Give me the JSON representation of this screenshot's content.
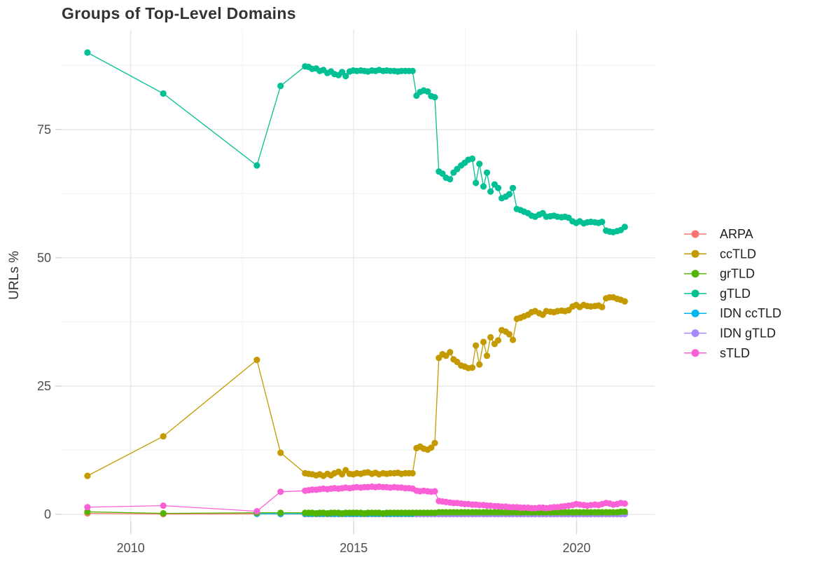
{
  "title": "Groups of Top-Level Domains",
  "axes": {
    "y_label": "URLs %",
    "y_ticks": [
      0,
      25,
      50,
      75
    ],
    "y_minor": [
      12.5,
      37.5,
      62.5,
      87.5
    ],
    "x_ticks": [
      2010,
      2015,
      2020
    ],
    "x_minor": [
      2012.5,
      2017.5
    ],
    "xlim": [
      2008.45,
      2021.75
    ],
    "ylim": [
      -1.5,
      94.5
    ]
  },
  "style_colors": {
    "grid_major": "#e6e6e6",
    "grid_minor": "#f2f2f2",
    "axis_tick": "#d9d9d9",
    "tick_text": "#4e4e4e",
    "title_text": "#333333"
  },
  "legend": {
    "position": "right",
    "items": [
      "ARPA",
      "ccTLD",
      "grTLD",
      "gTLD",
      "IDN ccTLD",
      "IDN gTLD",
      "sTLD"
    ]
  },
  "chart_data": {
    "type": "line",
    "title": "Groups of Top-Level Domains",
    "xlabel": "",
    "ylabel": "URLs %",
    "legend_position": "right",
    "grid": true,
    "marker": "point",
    "x": [
      2009.03,
      2010.73,
      2012.83,
      2013.36,
      2013.91,
      2013.99,
      2014.07,
      2014.16,
      2014.24,
      2014.32,
      2014.41,
      2014.49,
      2014.57,
      2014.66,
      2014.74,
      2014.82,
      2014.91,
      2014.99,
      2015.07,
      2015.16,
      2015.24,
      2015.32,
      2015.41,
      2015.49,
      2015.57,
      2015.66,
      2015.74,
      2015.82,
      2015.91,
      2015.99,
      2016.07,
      2016.16,
      2016.24,
      2016.32,
      2016.41,
      2016.49,
      2016.57,
      2016.66,
      2016.74,
      2016.82,
      2016.91,
      2016.99,
      2017.07,
      2017.16,
      2017.24,
      2017.32,
      2017.41,
      2017.49,
      2017.57,
      2017.66,
      2017.74,
      2017.82,
      2017.91,
      2017.99,
      2018.07,
      2018.16,
      2018.24,
      2018.32,
      2018.41,
      2018.49,
      2018.57,
      2018.66,
      2018.74,
      2018.82,
      2018.91,
      2018.99,
      2019.07,
      2019.16,
      2019.24,
      2019.32,
      2019.41,
      2019.49,
      2019.57,
      2019.66,
      2019.74,
      2019.82,
      2019.91,
      2019.99,
      2020.07,
      2020.16,
      2020.24,
      2020.32,
      2020.41,
      2020.49,
      2020.57,
      2020.66,
      2020.74,
      2020.82,
      2020.91,
      2020.99,
      2021.08
    ],
    "draw_order": [
      "ARPA",
      "IDN ccTLD",
      "IDN gTLD",
      "grTLD",
      "sTLD",
      "ccTLD",
      "gTLD"
    ],
    "series": [
      {
        "name": "ARPA",
        "color": "#F8766D",
        "values": [
          0.2,
          0.05,
          0.1,
          0.05,
          0.05,
          0.05,
          0.05,
          0.05,
          0.05,
          0.05,
          0.05,
          0.05,
          0.05,
          0.05,
          0.05,
          0.05,
          0.05,
          0.05,
          0.05,
          0.05,
          0.05,
          0.05,
          0.05,
          0.05,
          0.05,
          0.05,
          0.05,
          0.05,
          0.05,
          0.05,
          0.05,
          0.05,
          0.05,
          0.05,
          0.05,
          0.05,
          0.05,
          0.05,
          0.05,
          0.05,
          0.05,
          0.05,
          0.05,
          0.05,
          0.05,
          0.05,
          0.05,
          0.05,
          0.05,
          0.05,
          0.05,
          0.05,
          0.05,
          0.05,
          0.05,
          0.05,
          0.05,
          0.05,
          0.05,
          0.05,
          0.05,
          0.05,
          0.05,
          0.05,
          0.05,
          0.05,
          0.05,
          0.05,
          0.05,
          0.05,
          0.05,
          0.05,
          0.05,
          0.05,
          0.05,
          0.05,
          0.05,
          0.05,
          0.05,
          0.05,
          0.05,
          0.05,
          0.05,
          0.05,
          0.05,
          0.05,
          0.05,
          0.05,
          0.05,
          0.05,
          0.05
        ]
      },
      {
        "name": "ccTLD",
        "color": "#C49A00",
        "values": [
          7.5,
          15.2,
          30.1,
          12.0,
          8.0,
          7.9,
          7.8,
          7.6,
          7.8,
          7.5,
          7.9,
          7.6,
          8.0,
          8.3,
          7.8,
          8.6,
          7.9,
          7.8,
          8.0,
          7.9,
          8.1,
          8.2,
          7.9,
          8.1,
          7.8,
          8.0,
          7.9,
          8.0,
          8.0,
          8.1,
          7.9,
          8.0,
          8.0,
          8.0,
          12.9,
          13.2,
          12.8,
          12.6,
          13.0,
          13.9,
          30.5,
          31.2,
          30.9,
          31.6,
          30.2,
          29.7,
          29.0,
          28.8,
          28.5,
          28.6,
          32.9,
          29.2,
          33.6,
          30.9,
          34.5,
          33.2,
          33.9,
          35.9,
          35.6,
          35.1,
          34.0,
          38.1,
          38.3,
          38.6,
          38.9,
          39.4,
          39.6,
          39.2,
          38.9,
          39.6,
          39.5,
          39.4,
          39.6,
          39.7,
          39.6,
          39.8,
          40.5,
          40.8,
          40.4,
          40.8,
          40.6,
          40.5,
          40.6,
          40.7,
          40.4,
          42.1,
          42.3,
          42.3,
          42.0,
          41.8,
          41.5
        ]
      },
      {
        "name": "grTLD",
        "color": "#53B400",
        "values": [
          0.5,
          0.2,
          0.3,
          0.3,
          0.3,
          0.3,
          0.3,
          0.2,
          0.3,
          0.3,
          0.2,
          0.3,
          0.3,
          0.3,
          0.2,
          0.3,
          0.3,
          0.3,
          0.3,
          0.3,
          0.2,
          0.3,
          0.3,
          0.3,
          0.3,
          0.2,
          0.3,
          0.3,
          0.3,
          0.3,
          0.3,
          0.3,
          0.3,
          0.3,
          0.3,
          0.3,
          0.3,
          0.3,
          0.3,
          0.3,
          0.4,
          0.4,
          0.4,
          0.4,
          0.4,
          0.4,
          0.4,
          0.4,
          0.4,
          0.4,
          0.4,
          0.4,
          0.4,
          0.4,
          0.4,
          0.4,
          0.4,
          0.4,
          0.4,
          0.4,
          0.4,
          0.4,
          0.4,
          0.4,
          0.4,
          0.4,
          0.4,
          0.4,
          0.4,
          0.4,
          0.4,
          0.4,
          0.4,
          0.4,
          0.4,
          0.4,
          0.4,
          0.4,
          0.4,
          0.4,
          0.4,
          0.4,
          0.4,
          0.4,
          0.4,
          0.4,
          0.4,
          0.4,
          0.4,
          0.5,
          0.5
        ]
      },
      {
        "name": "gTLD",
        "color": "#00C094",
        "values": [
          90.0,
          82.0,
          68.0,
          83.5,
          87.3,
          87.2,
          86.8,
          86.9,
          86.4,
          86.6,
          86.0,
          86.3,
          85.8,
          85.6,
          86.2,
          85.4,
          86.3,
          86.5,
          86.4,
          86.5,
          86.4,
          86.3,
          86.5,
          86.4,
          86.6,
          86.4,
          86.5,
          86.4,
          86.4,
          86.3,
          86.4,
          86.4,
          86.4,
          86.4,
          81.6,
          82.3,
          82.6,
          82.4,
          81.5,
          81.3,
          66.8,
          66.4,
          65.6,
          65.3,
          66.6,
          67.3,
          68.0,
          68.5,
          69.1,
          69.3,
          64.6,
          68.3,
          63.9,
          66.6,
          62.9,
          64.3,
          63.6,
          61.6,
          61.9,
          62.4,
          63.6,
          59.5,
          59.3,
          59.0,
          58.7,
          58.2,
          58.0,
          58.4,
          58.7,
          58.0,
          58.1,
          58.2,
          58.0,
          57.9,
          58.0,
          57.8,
          57.1,
          56.8,
          57.1,
          56.7,
          56.9,
          57.0,
          56.9,
          56.8,
          57.0,
          55.3,
          55.1,
          55.0,
          55.2,
          55.4,
          56.0
        ]
      },
      {
        "name": "IDN ccTLD",
        "color": "#00B6EB",
        "values": [
          null,
          null,
          0.1,
          0.1,
          0.1,
          0.1,
          0.1,
          0.1,
          0.1,
          0.1,
          0.1,
          0.1,
          0.1,
          0.1,
          0.1,
          0.1,
          0.1,
          0.1,
          0.1,
          0.1,
          0.1,
          0.1,
          0.1,
          0.1,
          0.1,
          0.1,
          0.1,
          0.1,
          0.1,
          0.1,
          0.1,
          0.1,
          0.1,
          0.1,
          0.1,
          0.1,
          0.1,
          0.1,
          0.1,
          0.1,
          0.1,
          0.1,
          0.1,
          0.1,
          0.1,
          0.1,
          0.1,
          0.1,
          0.1,
          0.1,
          0.1,
          0.1,
          0.1,
          0.1,
          0.1,
          0.1,
          0.1,
          0.1,
          0.1,
          0.1,
          0.1,
          0.1,
          0.1,
          0.1,
          0.1,
          0.1,
          0.1,
          0.1,
          0.1,
          0.1,
          0.1,
          0.1,
          0.1,
          0.1,
          0.1,
          0.1,
          0.1,
          0.1,
          0.1,
          0.1,
          0.1,
          0.1,
          0.1,
          0.1,
          0.1,
          0.1,
          0.1,
          0.1,
          0.1,
          0.1,
          0.1
        ]
      },
      {
        "name": "IDN gTLD",
        "color": "#A58AFF",
        "values": [
          null,
          null,
          null,
          null,
          null,
          null,
          null,
          null,
          null,
          null,
          null,
          null,
          null,
          null,
          null,
          null,
          null,
          null,
          null,
          null,
          null,
          null,
          null,
          null,
          null,
          null,
          null,
          null,
          null,
          null,
          null,
          null,
          null,
          null,
          0.05,
          0.05,
          0.05,
          0.05,
          0.05,
          0.05,
          0.05,
          0.05,
          0.05,
          0.05,
          0.05,
          0.05,
          0.05,
          0.05,
          0.05,
          0.05,
          0.05,
          0.05,
          0.05,
          0.05,
          0.05,
          0.05,
          0.05,
          0.05,
          0.05,
          0.05,
          0.05,
          0.05,
          0.05,
          0.05,
          0.05,
          0.05,
          0.05,
          0.05,
          0.05,
          0.05,
          0.05,
          0.05,
          0.05,
          0.05,
          0.05,
          0.05,
          0.05,
          0.05,
          0.05,
          0.05,
          0.05,
          0.05,
          0.05,
          0.05,
          0.05,
          0.05,
          0.05,
          0.05,
          0.05,
          0.05,
          0.05
        ]
      },
      {
        "name": "sTLD",
        "color": "#FB61D7",
        "values": [
          1.4,
          1.7,
          0.6,
          4.4,
          4.6,
          4.7,
          4.8,
          4.8,
          4.9,
          5.0,
          4.9,
          5.0,
          5.1,
          5.0,
          5.1,
          5.2,
          5.1,
          5.2,
          5.3,
          5.2,
          5.3,
          5.3,
          5.4,
          5.3,
          5.4,
          5.3,
          5.3,
          5.2,
          5.3,
          5.2,
          5.2,
          5.1,
          5.1,
          5.0,
          4.6,
          4.5,
          4.6,
          4.5,
          4.4,
          4.5,
          2.6,
          2.5,
          2.4,
          2.3,
          2.2,
          2.2,
          2.1,
          2.0,
          2.0,
          1.9,
          1.9,
          1.8,
          1.8,
          1.7,
          1.7,
          1.6,
          1.6,
          1.5,
          1.5,
          1.4,
          1.4,
          1.4,
          1.3,
          1.3,
          1.3,
          1.2,
          1.2,
          1.3,
          1.3,
          1.2,
          1.3,
          1.4,
          1.4,
          1.5,
          1.6,
          1.7,
          1.8,
          2.0,
          1.9,
          1.8,
          1.7,
          1.8,
          1.9,
          1.8,
          2.0,
          2.2,
          2.1,
          1.9,
          2.0,
          2.2,
          2.1
        ]
      }
    ]
  }
}
